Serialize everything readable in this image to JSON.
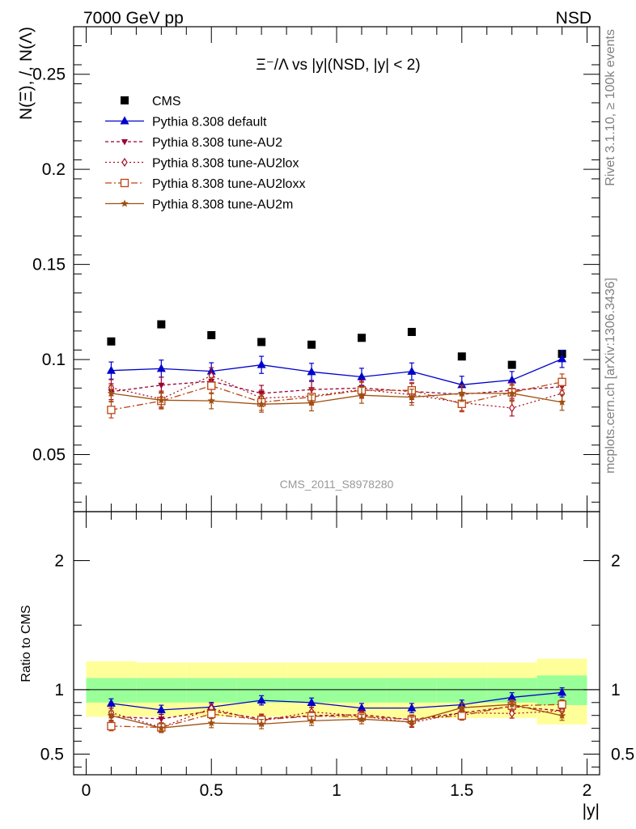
{
  "header": {
    "left": "7000 GeV pp",
    "right": "NSD"
  },
  "side": {
    "rivet": "Rivet 3.1.10, ≥ 100k events",
    "mcplots": "mcplots.cern.ch [arXiv:1306.3436]"
  },
  "colors": {
    "cms": "#000000",
    "default": "#0000cc",
    "au2": "#990033",
    "au2lox": "#aa1122",
    "au2loxx": "#bb4411",
    "au2m": "#a05010",
    "band_yellow": "#ffff99",
    "band_green": "#99ff99"
  },
  "chart_data": [
    {
      "type": "scatter",
      "title": "Ξ⁻/Λ vs |y|(NSD, |y| < 2)",
      "ylabel": "N(Ξ), /, N(Λ)",
      "watermark": "CMS_2011_S8978280",
      "xlim": [
        -0.05,
        2.05
      ],
      "ylim": [
        0.02,
        0.275
      ],
      "yticks": [
        0.05,
        0.1,
        0.15,
        0.2,
        0.25
      ],
      "ytick_labels": [
        "0.05",
        "0.1",
        "0.15",
        "0.2",
        "0.25"
      ],
      "x": [
        0.1,
        0.3,
        0.5,
        0.7,
        0.9,
        1.1,
        1.3,
        1.5,
        1.7,
        1.9
      ],
      "series": [
        {
          "name": "CMS",
          "key": "cms",
          "style": "square",
          "dash": "",
          "values": [
            0.1095,
            0.1185,
            0.1128,
            0.1092,
            0.1078,
            0.1114,
            0.1145,
            0.1016,
            0.0972,
            0.103
          ],
          "err": [
            0,
            0,
            0,
            0,
            0,
            0,
            0,
            0,
            0,
            0
          ]
        },
        {
          "name": "Pythia 8.308 default",
          "key": "default",
          "style": "triangle",
          "dash": "",
          "values": [
            0.0942,
            0.0952,
            0.0938,
            0.0972,
            0.0935,
            0.0909,
            0.0937,
            0.0867,
            0.0892,
            0.1003
          ],
          "err": [
            0.0045,
            0.0045,
            0.0045,
            0.0045,
            0.0045,
            0.0045,
            0.0045,
            0.0045,
            0.0045,
            0.0045
          ]
        },
        {
          "name": "Pythia 8.308 tune-AU2",
          "key": "au2",
          "style": "tridown",
          "dash": "4,3",
          "values": [
            0.0831,
            0.0865,
            0.0886,
            0.0822,
            0.0842,
            0.085,
            0.0832,
            0.0817,
            0.0838,
            0.0857
          ],
          "err": [
            0.0042,
            0.0042,
            0.0042,
            0.0042,
            0.0042,
            0.0042,
            0.0042,
            0.0042,
            0.0042,
            0.0042
          ]
        },
        {
          "name": "Pythia 8.308 tune-AU2lox",
          "key": "au2lox",
          "style": "diamond",
          "dash": "2,3",
          "values": [
            0.0852,
            0.0792,
            0.0915,
            0.0797,
            0.0808,
            0.0842,
            0.0815,
            0.0773,
            0.0745,
            0.0822
          ],
          "err": [
            0.0042,
            0.0042,
            0.0042,
            0.0042,
            0.0042,
            0.0042,
            0.0042,
            0.0042,
            0.0042,
            0.0042
          ]
        },
        {
          "name": "Pythia 8.308 tune-AU2loxx",
          "key": "au2loxx",
          "style": "opensquare",
          "dash": "8,3,2,3",
          "values": [
            0.0735,
            0.0782,
            0.0862,
            0.0775,
            0.0803,
            0.0838,
            0.0838,
            0.0767,
            0.0827,
            0.0882
          ],
          "err": [
            0.0042,
            0.0042,
            0.0042,
            0.0042,
            0.0042,
            0.0042,
            0.0042,
            0.0042,
            0.0042,
            0.0042
          ]
        },
        {
          "name": "Pythia 8.308 tune-AU2m",
          "key": "au2m",
          "style": "star",
          "dash": "",
          "values": [
            0.0822,
            0.0786,
            0.0783,
            0.0765,
            0.0772,
            0.0812,
            0.0802,
            0.0822,
            0.0822,
            0.0775
          ],
          "err": [
            0.0042,
            0.0042,
            0.0042,
            0.0042,
            0.0042,
            0.0042,
            0.0042,
            0.0042,
            0.0042,
            0.0042
          ]
        }
      ]
    },
    {
      "type": "scatter",
      "ylabel": "Ratio to CMS",
      "xlabel": "|y|",
      "xlim": [
        -0.05,
        2.05
      ],
      "ylim": [
        0.34,
        2.38
      ],
      "xticks": [
        0,
        0.5,
        1,
        1.5,
        2
      ],
      "xtick_labels": [
        "0",
        "0.5",
        "1",
        "1.5",
        "2"
      ],
      "yticks": [
        0.5,
        1,
        2
      ],
      "ytick_labels": [
        "0.5",
        "1",
        "2"
      ],
      "x": [
        0.1,
        0.3,
        0.5,
        0.7,
        0.9,
        1.1,
        1.3,
        1.5,
        1.7,
        1.9
      ],
      "bands": {
        "edges": [
          0,
          0.2,
          0.4,
          0.6,
          0.8,
          1.0,
          1.2,
          1.4,
          1.6,
          1.8,
          2.0
        ],
        "yellow": [
          [
            0.79,
            1.22
          ],
          [
            0.79,
            1.21
          ],
          [
            0.79,
            1.21
          ],
          [
            0.79,
            1.21
          ],
          [
            0.79,
            1.21
          ],
          [
            0.78,
            1.21
          ],
          [
            0.78,
            1.21
          ],
          [
            0.78,
            1.21
          ],
          [
            0.78,
            1.21
          ],
          [
            0.73,
            1.24
          ]
        ],
        "green": [
          [
            0.9,
            1.09
          ],
          [
            0.9,
            1.09
          ],
          [
            0.9,
            1.09
          ],
          [
            0.9,
            1.09
          ],
          [
            0.9,
            1.09
          ],
          [
            0.9,
            1.09
          ],
          [
            0.9,
            1.09
          ],
          [
            0.9,
            1.09
          ],
          [
            0.9,
            1.09
          ],
          [
            0.88,
            1.11
          ]
        ]
      },
      "series": [
        {
          "name": "Pythia 8.308 default",
          "key": "default",
          "style": "triangle",
          "dash": "",
          "values": [
            0.893,
            0.843,
            0.865,
            0.917,
            0.899,
            0.857,
            0.857,
            0.883,
            0.94,
            0.978
          ],
          "err": [
            0.036,
            0.036,
            0.036,
            0.036,
            0.036,
            0.036,
            0.036,
            0.036,
            0.036,
            0.036
          ]
        },
        {
          "name": "Pythia 8.308 tune-AU2",
          "key": "au2",
          "style": "tridown",
          "dash": "4,3",
          "values": [
            0.792,
            0.773,
            0.836,
            0.774,
            0.799,
            0.805,
            0.767,
            0.82,
            0.87,
            0.836
          ],
          "err": [
            0.036,
            0.036,
            0.036,
            0.036,
            0.036,
            0.036,
            0.036,
            0.036,
            0.036,
            0.036
          ]
        },
        {
          "name": "Pythia 8.308 tune-AU2lox",
          "key": "au2lox",
          "style": "diamond",
          "dash": "2,3",
          "values": [
            0.822,
            0.707,
            0.855,
            0.757,
            0.828,
            0.795,
            0.744,
            0.82,
            0.815,
            0.835
          ],
          "err": [
            0.036,
            0.036,
            0.036,
            0.036,
            0.036,
            0.036,
            0.036,
            0.036,
            0.036,
            0.036
          ]
        },
        {
          "name": "Pythia 8.308 tune-AU2loxx",
          "key": "au2loxx",
          "style": "opensquare",
          "dash": "8,3,2,3",
          "values": [
            0.717,
            0.707,
            0.811,
            0.766,
            0.794,
            0.79,
            0.768,
            0.799,
            0.875,
            0.885
          ],
          "err": [
            0.036,
            0.036,
            0.036,
            0.036,
            0.036,
            0.036,
            0.036,
            0.036,
            0.036,
            0.036
          ]
        },
        {
          "name": "Pythia 8.308 tune-AU2m",
          "key": "au2m",
          "style": "star",
          "dash": "",
          "values": [
            0.799,
            0.703,
            0.741,
            0.733,
            0.758,
            0.771,
            0.75,
            0.86,
            0.885,
            0.798
          ],
          "err": [
            0.036,
            0.036,
            0.036,
            0.036,
            0.036,
            0.036,
            0.036,
            0.036,
            0.036,
            0.036
          ]
        }
      ]
    }
  ]
}
